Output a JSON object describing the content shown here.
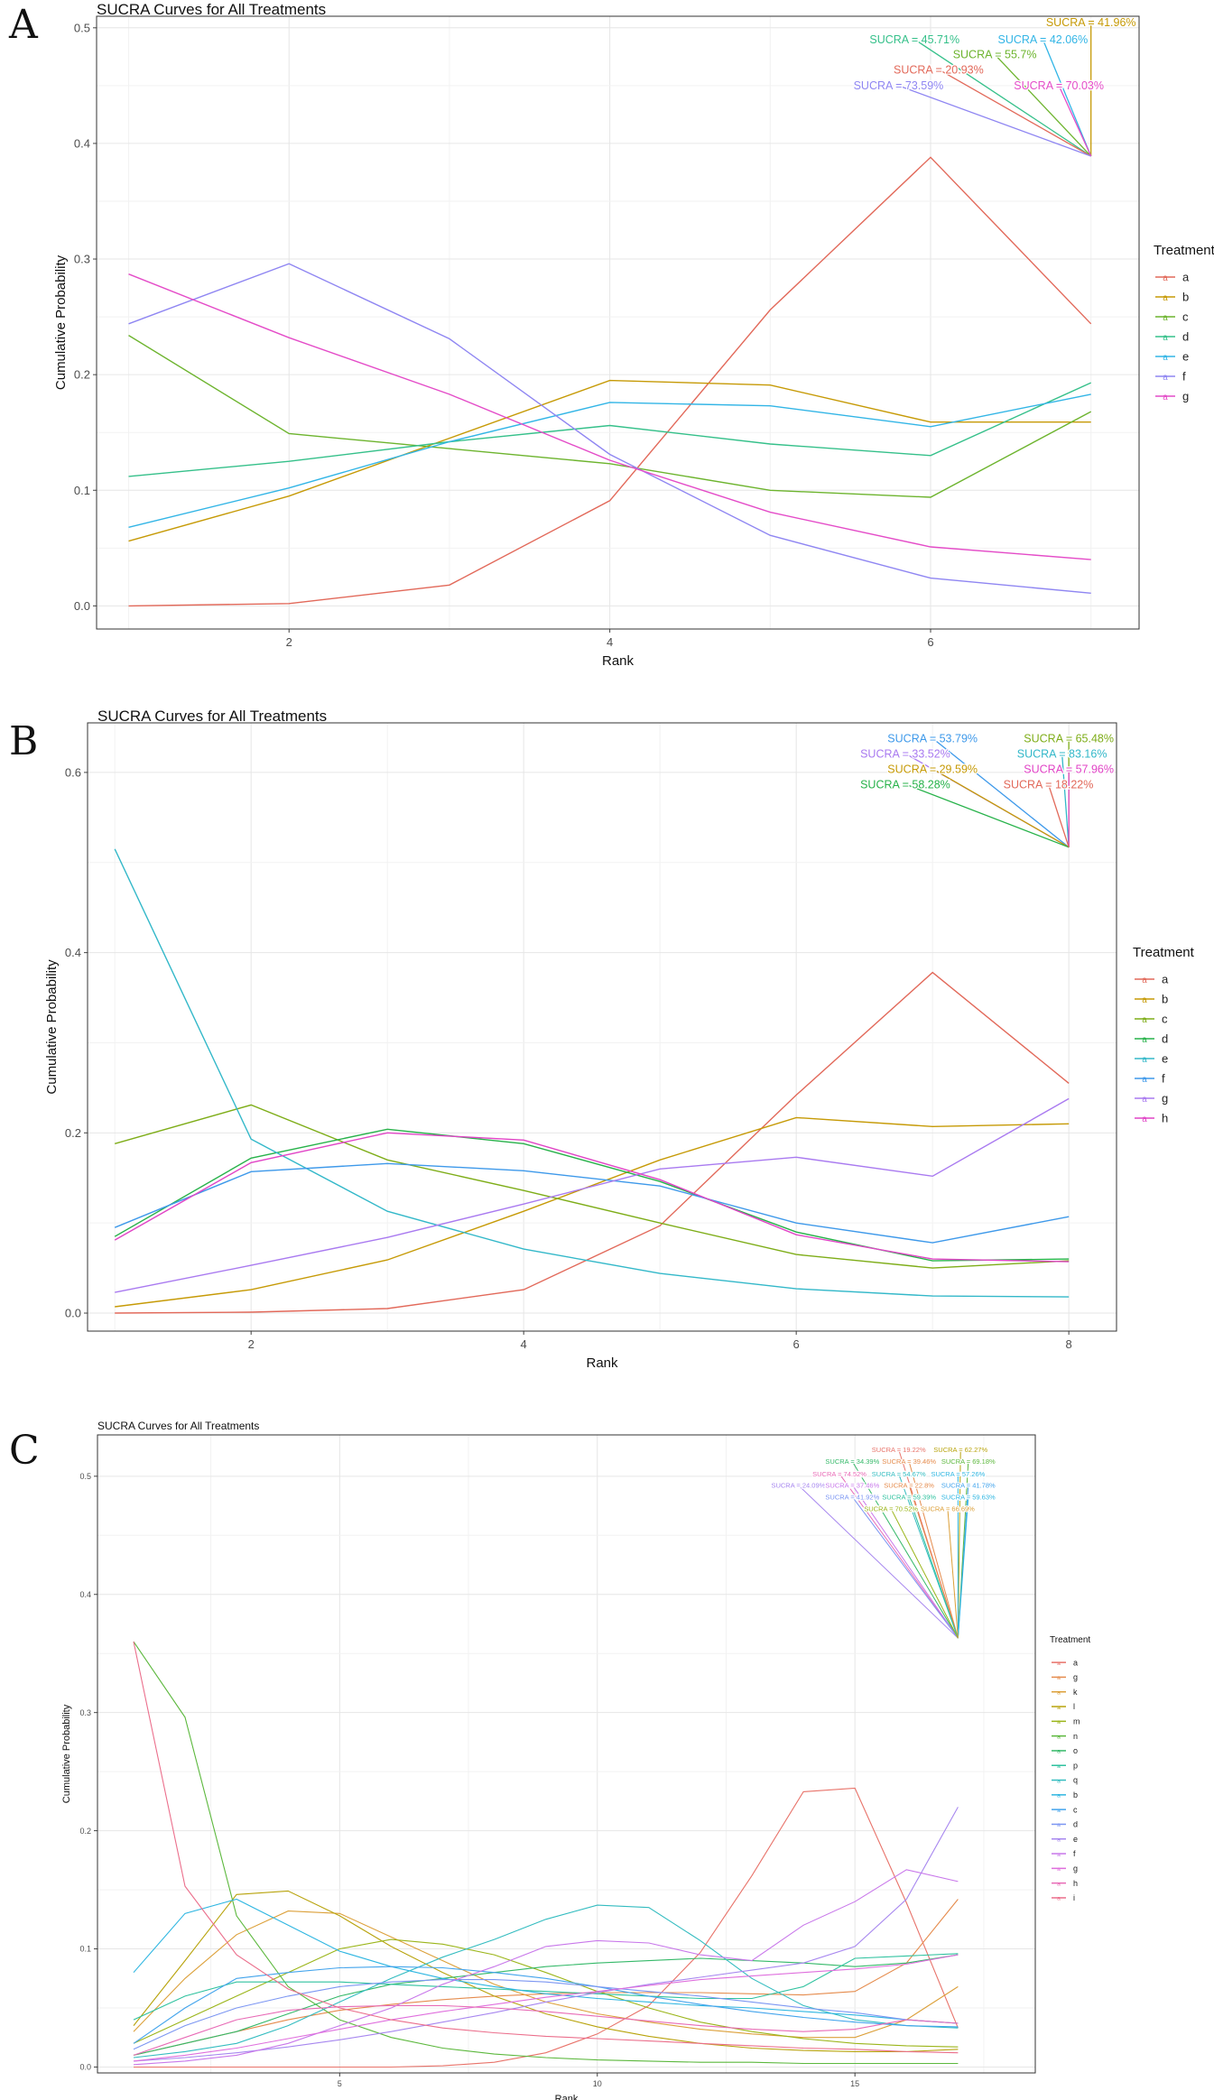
{
  "panels": [
    "A",
    "B",
    "C"
  ],
  "chart_data": [
    {
      "type": "line",
      "title": "SUCRA Curves for All Treatments",
      "xlabel": "Rank",
      "ylabel": "Cumulative Probability",
      "legend_title": "Treatment",
      "legend_position": "right",
      "grid": true,
      "xlim": [
        0.8,
        7.3
      ],
      "ylim": [
        -0.02,
        0.51
      ],
      "xticks": [
        2,
        4,
        6
      ],
      "yticks": [
        0.0,
        0.1,
        0.2,
        0.3,
        0.4,
        0.5
      ],
      "x": [
        1,
        2,
        3,
        4,
        5,
        6,
        7
      ],
      "series": [
        {
          "name": "a",
          "color": "#E2695A",
          "values": [
            0.0,
            0.002,
            0.018,
            0.091,
            0.256,
            0.388,
            0.244
          ]
        },
        {
          "name": "b",
          "color": "#C69A06",
          "values": [
            0.056,
            0.095,
            0.145,
            0.195,
            0.191,
            0.159,
            0.159
          ]
        },
        {
          "name": "c",
          "color": "#6DB42E",
          "values": [
            0.234,
            0.149,
            0.136,
            0.123,
            0.1,
            0.094,
            0.168
          ]
        },
        {
          "name": "d",
          "color": "#35C08A",
          "values": [
            0.112,
            0.125,
            0.142,
            0.156,
            0.14,
            0.13,
            0.193
          ]
        },
        {
          "name": "e",
          "color": "#32B5E6",
          "values": [
            0.068,
            0.102,
            0.142,
            0.176,
            0.173,
            0.155,
            0.183
          ]
        },
        {
          "name": "f",
          "color": "#8F86F2",
          "values": [
            0.244,
            0.296,
            0.231,
            0.131,
            0.061,
            0.024,
            0.011
          ]
        },
        {
          "name": "g",
          "color": "#E44CC8",
          "values": [
            0.287,
            0.232,
            0.183,
            0.126,
            0.081,
            0.051,
            0.04
          ]
        }
      ],
      "annotation_target": {
        "x": 7,
        "y": 0.389
      },
      "annotations": [
        {
          "text": "SUCRA = 41.96%",
          "series": "b",
          "x": 7.0,
          "y": 0.505
        },
        {
          "text": "SUCRA = 45.71%",
          "series": "d",
          "x": 5.9,
          "y": 0.49
        },
        {
          "text": "SUCRA = 42.06%",
          "series": "e",
          "x": 6.7,
          "y": 0.49
        },
        {
          "text": "SUCRA = 55.7%",
          "series": "c",
          "x": 6.4,
          "y": 0.477
        },
        {
          "text": "SUCRA = 20.93%",
          "series": "a",
          "x": 6.05,
          "y": 0.464
        },
        {
          "text": "SUCRA = 73.59%",
          "series": "f",
          "x": 5.8,
          "y": 0.45
        },
        {
          "text": "SUCRA = 70.03%",
          "series": "g",
          "x": 6.8,
          "y": 0.45
        }
      ]
    },
    {
      "type": "line",
      "title": "SUCRA Curves for All Treatments",
      "xlabel": "Rank",
      "ylabel": "Cumulative Probability",
      "legend_title": "Treatment",
      "legend_position": "right",
      "grid": true,
      "xlim": [
        0.8,
        8.35
      ],
      "ylim": [
        -0.02,
        0.655
      ],
      "xticks": [
        2,
        4,
        6,
        8
      ],
      "yticks": [
        0.0,
        0.2,
        0.4,
        0.6
      ],
      "x": [
        1,
        2,
        3,
        4,
        5,
        6,
        7,
        8
      ],
      "series": [
        {
          "name": "a",
          "color": "#E2695A",
          "values": [
            0.0,
            0.001,
            0.005,
            0.026,
            0.097,
            0.242,
            0.378,
            0.255
          ]
        },
        {
          "name": "b",
          "color": "#C69A06",
          "values": [
            0.007,
            0.026,
            0.059,
            0.113,
            0.17,
            0.217,
            0.207,
            0.21
          ]
        },
        {
          "name": "c",
          "color": "#7EAD18",
          "values": [
            0.188,
            0.231,
            0.17,
            0.136,
            0.1,
            0.065,
            0.05,
            0.058
          ]
        },
        {
          "name": "d",
          "color": "#27B24A",
          "values": [
            0.085,
            0.172,
            0.204,
            0.188,
            0.146,
            0.09,
            0.058,
            0.06
          ]
        },
        {
          "name": "e",
          "color": "#33B8C9",
          "values": [
            0.515,
            0.193,
            0.113,
            0.071,
            0.044,
            0.027,
            0.019,
            0.018
          ]
        },
        {
          "name": "f",
          "color": "#3E99EA",
          "values": [
            0.095,
            0.157,
            0.166,
            0.158,
            0.141,
            0.1,
            0.078,
            0.107
          ]
        },
        {
          "name": "g",
          "color": "#A97AF0",
          "values": [
            0.023,
            0.053,
            0.084,
            0.121,
            0.16,
            0.173,
            0.152,
            0.238
          ]
        },
        {
          "name": "h",
          "color": "#E144C6",
          "values": [
            0.081,
            0.167,
            0.2,
            0.192,
            0.148,
            0.087,
            0.06,
            0.057
          ]
        }
      ],
      "annotation_target": {
        "x": 8,
        "y": 0.517
      },
      "annotations": [
        {
          "text": "SUCRA = 53.79%",
          "series": "f",
          "x": 7.0,
          "y": 0.638
        },
        {
          "text": "SUCRA = 65.48%",
          "series": "c",
          "x": 8.0,
          "y": 0.638
        },
        {
          "text": "SUCRA = 33.52%",
          "series": "g",
          "x": 6.8,
          "y": 0.621
        },
        {
          "text": "SUCRA = 83.16%",
          "series": "e",
          "x": 7.95,
          "y": 0.621
        },
        {
          "text": "SUCRA = 29.59%",
          "series": "b",
          "x": 7.0,
          "y": 0.604
        },
        {
          "text": "SUCRA = 57.96%",
          "series": "h",
          "x": 8.0,
          "y": 0.604
        },
        {
          "text": "SUCRA = 58.28%",
          "series": "d",
          "x": 6.8,
          "y": 0.587
        },
        {
          "text": "SUCRA = 18.22%",
          "series": "a",
          "x": 7.85,
          "y": 0.587
        }
      ]
    },
    {
      "type": "line",
      "title": "SUCRA Curves for All Treatments",
      "xlabel": "Rank",
      "ylabel": "Cumulative Probability",
      "legend_title": "Treatment",
      "legend_position": "right",
      "grid": true,
      "xlim": [
        0.3,
        18.5
      ],
      "ylim": [
        -0.005,
        0.535
      ],
      "xticks": [
        5,
        10,
        15
      ],
      "yticks": [
        0.0,
        0.1,
        0.2,
        0.3,
        0.4,
        0.5
      ],
      "x": [
        1,
        2,
        3,
        4,
        5,
        6,
        7,
        8,
        9,
        10,
        11,
        12,
        13,
        14,
        15,
        16,
        17
      ],
      "series": [
        {
          "name": "a",
          "color": "#E8736A",
          "values": [
            0.0,
            0.0,
            0.0,
            0.0,
            0.0,
            0.0,
            0.001,
            0.004,
            0.012,
            0.028,
            0.052,
            0.097,
            0.162,
            0.233,
            0.236,
            0.139,
            0.033
          ]
        },
        {
          "name": "g",
          "color": "#E58B4C",
          "values": [
            0.01,
            0.02,
            0.03,
            0.04,
            0.048,
            0.053,
            0.057,
            0.06,
            0.062,
            0.063,
            0.063,
            0.063,
            0.062,
            0.061,
            0.064,
            0.088,
            0.142
          ]
        },
        {
          "name": "k",
          "color": "#DCA03A",
          "values": [
            0.03,
            0.075,
            0.112,
            0.132,
            0.13,
            0.11,
            0.09,
            0.07,
            0.055,
            0.045,
            0.038,
            0.032,
            0.028,
            0.025,
            0.025,
            0.04,
            0.068
          ]
        },
        {
          "name": "l",
          "color": "#B8A30C",
          "values": [
            0.035,
            0.09,
            0.146,
            0.149,
            0.128,
            0.102,
            0.08,
            0.06,
            0.045,
            0.034,
            0.026,
            0.02,
            0.016,
            0.014,
            0.013,
            0.013,
            0.015
          ]
        },
        {
          "name": "m",
          "color": "#9BB51A",
          "values": [
            0.02,
            0.04,
            0.06,
            0.08,
            0.1,
            0.108,
            0.104,
            0.095,
            0.08,
            0.064,
            0.05,
            0.038,
            0.03,
            0.024,
            0.02,
            0.018,
            0.017
          ]
        },
        {
          "name": "n",
          "color": "#5CB83D",
          "values": [
            0.36,
            0.296,
            0.128,
            0.068,
            0.04,
            0.025,
            0.016,
            0.011,
            0.008,
            0.006,
            0.005,
            0.004,
            0.004,
            0.003,
            0.003,
            0.003,
            0.003
          ]
        },
        {
          "name": "o",
          "color": "#35B969",
          "values": [
            0.01,
            0.02,
            0.03,
            0.045,
            0.06,
            0.07,
            0.075,
            0.08,
            0.085,
            0.088,
            0.09,
            0.092,
            0.09,
            0.088,
            0.085,
            0.088,
            0.095
          ]
        },
        {
          "name": "p",
          "color": "#2FC29F",
          "values": [
            0.04,
            0.06,
            0.072,
            0.072,
            0.072,
            0.07,
            0.068,
            0.066,
            0.064,
            0.062,
            0.06,
            0.058,
            0.058,
            0.068,
            0.092,
            0.094,
            0.096
          ]
        },
        {
          "name": "q",
          "color": "#33BCC0",
          "values": [
            0.008,
            0.013,
            0.02,
            0.035,
            0.055,
            0.075,
            0.093,
            0.108,
            0.125,
            0.137,
            0.135,
            0.107,
            0.075,
            0.052,
            0.04,
            0.035,
            0.033
          ]
        },
        {
          "name": "b",
          "color": "#2FB6E1",
          "values": [
            0.08,
            0.13,
            0.142,
            0.12,
            0.098,
            0.085,
            0.075,
            0.068,
            0.062,
            0.058,
            0.055,
            0.052,
            0.05,
            0.047,
            0.044,
            0.04,
            0.037
          ]
        },
        {
          "name": "c",
          "color": "#43A4EC",
          "values": [
            0.02,
            0.05,
            0.075,
            0.08,
            0.084,
            0.085,
            0.084,
            0.08,
            0.075,
            0.068,
            0.06,
            0.053,
            0.047,
            0.042,
            0.038,
            0.035,
            0.034
          ]
        },
        {
          "name": "d",
          "color": "#7C96F2",
          "values": [
            0.015,
            0.035,
            0.05,
            0.06,
            0.068,
            0.072,
            0.074,
            0.074,
            0.072,
            0.068,
            0.064,
            0.06,
            0.055,
            0.05,
            0.046,
            0.04,
            0.037
          ]
        },
        {
          "name": "e",
          "color": "#A787EF",
          "values": [
            0.005,
            0.008,
            0.012,
            0.017,
            0.023,
            0.03,
            0.038,
            0.046,
            0.055,
            0.063,
            0.07,
            0.076,
            0.082,
            0.088,
            0.102,
            0.142,
            0.22
          ]
        },
        {
          "name": "f",
          "color": "#C877EA",
          "values": [
            0.002,
            0.005,
            0.01,
            0.02,
            0.035,
            0.05,
            0.07,
            0.085,
            0.102,
            0.107,
            0.105,
            0.095,
            0.09,
            0.12,
            0.14,
            0.167,
            0.157
          ]
        },
        {
          "name": "g",
          "color": "#DF6FDD",
          "values": [
            0.005,
            0.01,
            0.016,
            0.024,
            0.032,
            0.04,
            0.047,
            0.053,
            0.059,
            0.064,
            0.069,
            0.074,
            0.077,
            0.08,
            0.083,
            0.087,
            0.095
          ]
        },
        {
          "name": "h",
          "color": "#E86BB6",
          "values": [
            0.01,
            0.025,
            0.04,
            0.048,
            0.051,
            0.052,
            0.052,
            0.05,
            0.047,
            0.043,
            0.039,
            0.035,
            0.032,
            0.03,
            0.032,
            0.04,
            0.037
          ]
        },
        {
          "name": "i",
          "color": "#EB6F8C",
          "values": [
            0.36,
            0.153,
            0.095,
            0.066,
            0.05,
            0.04,
            0.033,
            0.029,
            0.026,
            0.024,
            0.022,
            0.02,
            0.018,
            0.016,
            0.015,
            0.013,
            0.012
          ]
        }
      ],
      "annotation_target": {
        "x": 17,
        "y": 0.363
      },
      "annotations": [
        {
          "text": "SUCRA = 19.22%",
          "series": "a",
          "x": 15.85,
          "y": 0.5225
        },
        {
          "text": "SUCRA = 62.27%",
          "series": "l",
          "x": 17.05,
          "y": 0.5225
        },
        {
          "text": "SUCRA = 34.39%",
          "series": "o",
          "x": 14.95,
          "y": 0.5125
        },
        {
          "text": "SUCRA = 39.46%",
          "series": "g",
          "x": 16.05,
          "y": 0.5125
        },
        {
          "text": "SUCRA = 69.18%",
          "series": "n",
          "x": 17.2,
          "y": 0.5125
        },
        {
          "text": "SUCRA = 74.52%",
          "series": "h",
          "x": 14.7,
          "y": 0.502
        },
        {
          "text": "SUCRA = 54.67%",
          "series": "q",
          "x": 15.85,
          "y": 0.502
        },
        {
          "text": "SUCRA = 57.26%",
          "series": "b",
          "x": 17.0,
          "y": 0.502
        },
        {
          "text": "SUCRA = 24.09%",
          "series": "e",
          "x": 13.9,
          "y": 0.4925
        },
        {
          "text": "SUCRA = 37.46%",
          "series": "f",
          "x": 14.95,
          "y": 0.4925
        },
        {
          "text": "SUCRA = 22.8%",
          "series": "g",
          "x": 16.05,
          "y": 0.4925
        },
        {
          "text": "SUCRA = 41.78%",
          "series": "c",
          "x": 17.2,
          "y": 0.4925
        },
        {
          "text": "SUCRA = 41.92%",
          "series": "d",
          "x": 14.95,
          "y": 0.4825
        },
        {
          "text": "SUCRA = 59.39%",
          "series": "p",
          "x": 16.05,
          "y": 0.4825
        },
        {
          "text": "SUCRA = 59.63%",
          "series": "b",
          "x": 17.2,
          "y": 0.4825
        },
        {
          "text": "SUCRA = 70.52%",
          "series": "m",
          "x": 15.7,
          "y": 0.4725
        },
        {
          "text": "SUCRA = 66.69%",
          "series": "k",
          "x": 16.8,
          "y": 0.4725
        }
      ]
    }
  ]
}
